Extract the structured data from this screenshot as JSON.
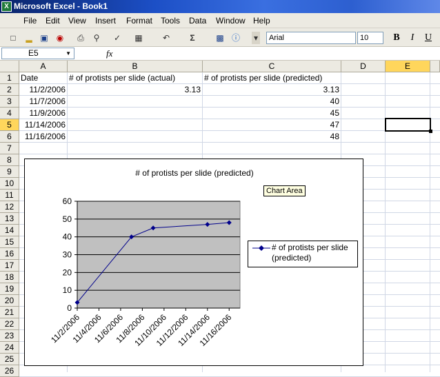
{
  "window": {
    "title": "Microsoft Excel - Book1",
    "app_icon": "excel-icon"
  },
  "menu": [
    "File",
    "Edit",
    "View",
    "Insert",
    "Format",
    "Tools",
    "Data",
    "Window",
    "Help"
  ],
  "toolbar": {
    "font_name": "Arial",
    "font_size": "10",
    "bold": "B",
    "italic": "I",
    "underline": "U",
    "sigma": "Σ"
  },
  "formula_bar": {
    "name_box": "E5",
    "fx": "fx",
    "content": ""
  },
  "columns": [
    "A",
    "B",
    "C",
    "D",
    "E"
  ],
  "rows": [
    "1",
    "2",
    "3",
    "4",
    "5",
    "6",
    "7",
    "8",
    "9",
    "10",
    "11",
    "12",
    "13",
    "14",
    "15",
    "16",
    "17",
    "18",
    "19",
    "20",
    "21",
    "22",
    "23",
    "24",
    "25",
    "26"
  ],
  "cells": {
    "A1": "Date",
    "B1": "# of protists per slide (actual)",
    "C1": "# of protists per slide (predicted)",
    "A2": "11/2/2006",
    "B2": "3.13",
    "C2": "3.13",
    "A3": "11/7/2006",
    "C3": "40",
    "A4": "11/9/2006",
    "C4": "45",
    "A5": "11/14/2006",
    "C5": "47",
    "A6": "11/16/2006",
    "C6": "48"
  },
  "tooltip": "Chart Area",
  "chart_data": {
    "type": "line",
    "title": "# of protists per slide (predicted)",
    "x": [
      "11/2/2006",
      "11/7/2006",
      "11/9/2006",
      "11/14/2006",
      "11/16/2006"
    ],
    "x_days": [
      0,
      5,
      7,
      12,
      14
    ],
    "xticks": [
      "11/2/2006",
      "11/4/2006",
      "11/6/2006",
      "11/8/2006",
      "11/10/2006",
      "11/12/2006",
      "11/14/2006",
      "11/16/2006"
    ],
    "yticks": [
      "0",
      "10",
      "20",
      "30",
      "40",
      "50",
      "60"
    ],
    "ylim": [
      0,
      60
    ],
    "series": [
      {
        "name": "# of protists per slide (predicted)",
        "values": [
          3.13,
          40,
          45,
          47,
          48
        ]
      }
    ],
    "legend": "right",
    "colors": {
      "line": "#00008b",
      "plot_bg": "#c0c0c0",
      "grid": "#000000"
    }
  },
  "selection": {
    "cell": "E5"
  }
}
